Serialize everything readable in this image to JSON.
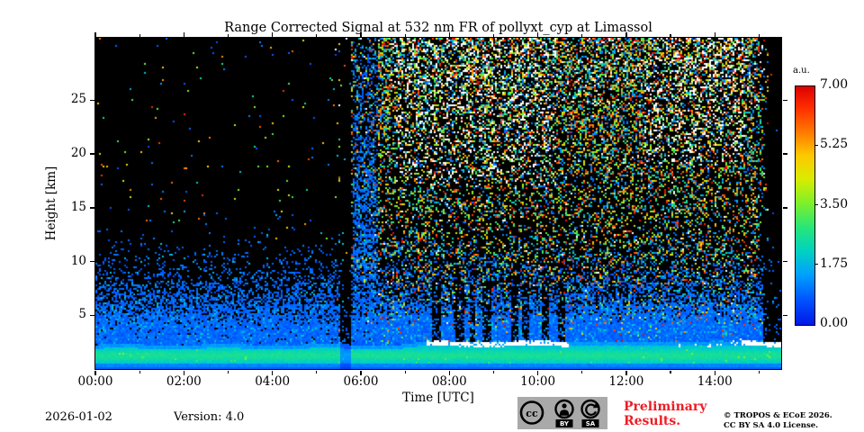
{
  "chart_data": {
    "type": "heatmap",
    "title": "Range Corrected Signal at 532 nm FR of pollyxt_cyp at Limassol",
    "xlabel": "Time [UTC]",
    "ylabel": "Height [km]",
    "x_range_hours": [
      0,
      15.5
    ],
    "y_range_km": [
      0,
      30.8
    ],
    "x_major_tick_hours": [
      0,
      2,
      4,
      6,
      8,
      10,
      12,
      14
    ],
    "x_major_tick_labels": [
      "00:00",
      "02:00",
      "04:00",
      "06:00",
      "08:00",
      "10:00",
      "12:00",
      "14:00"
    ],
    "x_minor_tick_hours": [
      1,
      3,
      5,
      7,
      9,
      11,
      13,
      15
    ],
    "y_major_ticks_km": [
      5,
      10,
      15,
      20,
      25
    ],
    "colormap": "jet",
    "colorbar": {
      "label": "a.u.",
      "range": [
        0,
        7
      ],
      "tick_values": [
        0.0,
        1.75,
        3.5,
        5.25,
        7.0
      ],
      "tick_labels": [
        "0.00",
        "1.75",
        "3.50",
        "5.25",
        "7.00"
      ]
    },
    "features": {
      "boundary_layer": {
        "top_km_night": 1.9,
        "top_km_day": 2.15,
        "peak_km": 1.25,
        "peak_value_au": 2.6,
        "base_value_au": 1.9,
        "ground_strip_km": 0.5,
        "ground_value_au": 1.1,
        "green_fleck_interval_hours": [
          0.75,
          1.2
        ]
      },
      "dark_column_hours": [
        5.55,
        5.78
      ],
      "blue_plume_hours": [
        5.8,
        6.4
      ],
      "daytime_noise_onset_hour": 5.4,
      "daytime_noise_fadeout_hour": 15.0,
      "measurement_end_hour": 15.08,
      "attenuated_columns_hours": [
        [
          7.6,
          7.8
        ],
        [
          8.1,
          8.35
        ],
        [
          8.45,
          8.6
        ],
        [
          8.75,
          8.95
        ],
        [
          9.4,
          9.55
        ],
        [
          9.65,
          9.8
        ],
        [
          10.1,
          10.25
        ],
        [
          10.45,
          10.6
        ]
      ],
      "cloud_cap_strong_hours": [
        [
          7.5,
          10.7
        ],
        [
          14.6,
          15.5
        ]
      ],
      "cloud_cap_sparse_hours": [
        [
          12.8,
          14.55
        ]
      ],
      "white_noise_zones": [
        {
          "t": [
            6.8,
            10.4
          ],
          "h_above_km": 17
        },
        {
          "t": [
            12.4,
            14.7
          ],
          "h_above_km": 19
        }
      ]
    }
  },
  "footer": {
    "date": "2026-01-02",
    "version": "Version: 4.0",
    "preliminary_line1": "Preliminary",
    "preliminary_line2": "Results.",
    "preliminary_color": "#ee1c25",
    "copyright_line1": "© TROPOS & ECoE 2026.",
    "copyright_line2": "CC BY SA 4.0 License.",
    "badge": {
      "cc": "cc",
      "by": "BY",
      "sa": "SA"
    }
  }
}
